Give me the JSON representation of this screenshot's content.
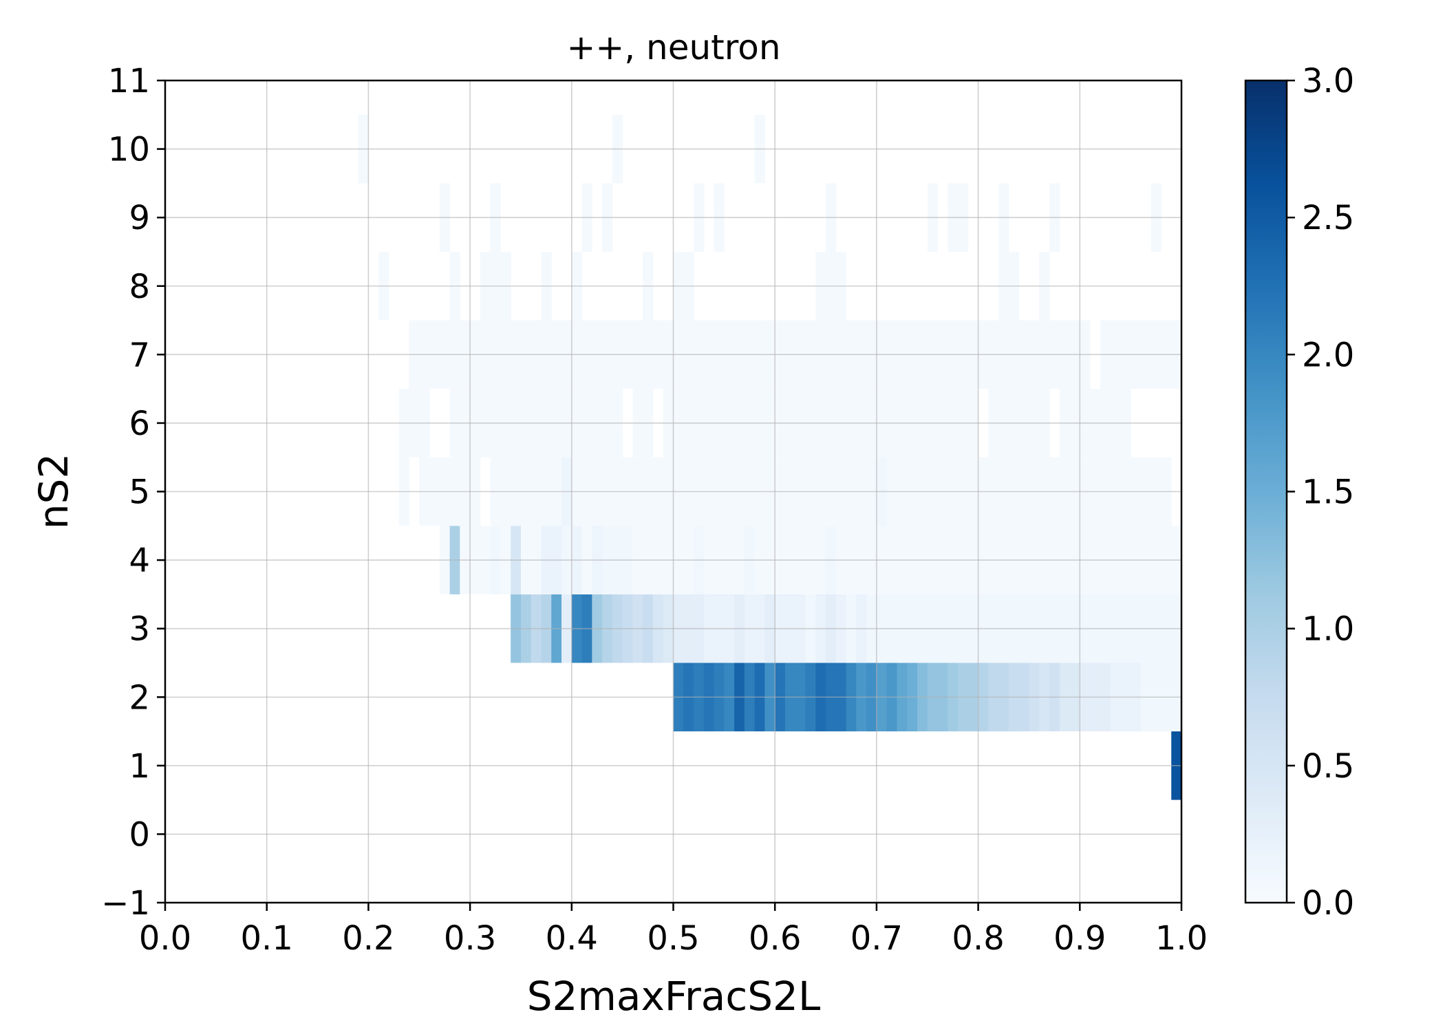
{
  "chart_data": {
    "type": "heatmap",
    "title": "++, neutron",
    "xlabel": "S2maxFracS2L",
    "ylabel": "nS2",
    "xlim": [
      0.0,
      1.0
    ],
    "ylim": [
      -1,
      11
    ],
    "xticks": [
      "0.0",
      "0.1",
      "0.2",
      "0.3",
      "0.4",
      "0.5",
      "0.6",
      "0.7",
      "0.8",
      "0.9",
      "1.0"
    ],
    "yticks": [
      "−1",
      "0",
      "1",
      "2",
      "3",
      "4",
      "5",
      "6",
      "7",
      "8",
      "9",
      "10",
      "11"
    ],
    "grid": true,
    "colormap": "Blues",
    "colorbar": {
      "min": 0.0,
      "max": 3.0,
      "ticks": [
        "0.0",
        "0.5",
        "1.0",
        "1.5",
        "2.0",
        "2.5",
        "3.0"
      ]
    },
    "x_bin_width": 0.01,
    "y_bin_height": 1,
    "rows": [
      {
        "y": 1,
        "x_start": 0.99,
        "values": [
          2.6
        ]
      },
      {
        "y": 2,
        "x_start": 0.5,
        "values": [
          2.1,
          2.2,
          2.1,
          2.2,
          2.1,
          2.0,
          2.4,
          2.1,
          2.3,
          1.9,
          2.2,
          2.0,
          2.0,
          2.1,
          2.3,
          2.2,
          2.2,
          2.0,
          1.8,
          1.9,
          1.7,
          1.8,
          1.6,
          1.5,
          1.3,
          1.2,
          1.2,
          1.1,
          1.0,
          1.0,
          0.9,
          0.8,
          0.8,
          0.7,
          0.7,
          0.6,
          0.5,
          0.6,
          0.4,
          0.4,
          0.3,
          0.3,
          0.3,
          0.2,
          0.2,
          0.2,
          0.1,
          0.1,
          0.1,
          0.1
        ]
      },
      {
        "y": 3,
        "x_start": 0.34,
        "values": [
          1.2,
          1.0,
          0.8,
          0.9,
          1.6,
          0.3,
          2.0,
          2.1,
          1.1,
          0.9,
          0.8,
          0.7,
          0.6,
          0.7,
          0.5,
          0.4,
          0.3,
          0.3,
          0.3,
          0.2,
          0.2,
          0.2,
          0.3,
          0.2,
          0.2,
          0.3,
          0.2,
          0.2,
          0.2,
          0.1,
          0.2,
          0.3,
          0.2,
          0.1,
          0.2,
          0.1,
          0.1,
          0.1,
          0.1,
          0.1,
          0.1,
          0.1,
          0.1,
          0.1,
          0.1,
          0.1,
          0.1,
          0.1,
          0.1,
          0.1,
          0.1,
          0.1,
          0.1,
          0.1,
          0.1,
          0.1,
          0.1,
          0.1,
          0.1,
          0.1,
          0.1,
          0.1,
          0.1,
          0.1,
          0.1,
          0.1
        ]
      },
      {
        "y": 4,
        "x_start": 0.27,
        "values": [
          0.05,
          1.0,
          0.05,
          0.05,
          0.05,
          0.1,
          0.05,
          0.5,
          0.05,
          0.05,
          0.2,
          0.2,
          0.1,
          0.15,
          0.05,
          0.15,
          0.1,
          0.1,
          0.1,
          0.05,
          0.05,
          0.05,
          0.05,
          0.05,
          0.05,
          0.1,
          0.05,
          0.05,
          0.05,
          0.05,
          0.1,
          0.05,
          0.05,
          0.05,
          0.05,
          0.05,
          0.05,
          0.05,
          0.1,
          0.05,
          0.05,
          0.05,
          0.05,
          0.05,
          0.05,
          0.05,
          0.05,
          0.05,
          0.05,
          0.05,
          0.05,
          0.05,
          0.05,
          0.05,
          0.05,
          0.05,
          0.05,
          0.05,
          0.05,
          0.05,
          0.05,
          0.05,
          0.05,
          0.05,
          0.05,
          0.05,
          0.05,
          0.05,
          0.05,
          0.05,
          0.05,
          0.05,
          0.05
        ]
      },
      {
        "y": 5,
        "x_start": 0.23,
        "values": [
          0.05,
          0.0,
          0.05,
          0.05,
          0.05,
          0.05,
          0.05,
          0.05,
          0.0,
          0.05,
          0.05,
          0.05,
          0.05,
          0.05,
          0.05,
          0.05,
          0.15,
          0.05,
          0.05,
          0.05,
          0.05,
          0.05,
          0.05,
          0.05,
          0.05,
          0.05,
          0.05,
          0.05,
          0.05,
          0.05,
          0.05,
          0.05,
          0.05,
          0.05,
          0.05,
          0.05,
          0.05,
          0.05,
          0.05,
          0.05,
          0.05,
          0.05,
          0.05,
          0.05,
          0.05,
          0.05,
          0.05,
          0.1,
          0.05,
          0.05,
          0.05,
          0.05,
          0.05,
          0.05,
          0.05,
          0.05,
          0.05,
          0.05,
          0.05,
          0.05,
          0.05,
          0.05,
          0.05,
          0.05,
          0.05,
          0.05,
          0.05,
          0.05,
          0.05,
          0.05,
          0.05,
          0.05,
          0.05,
          0.05,
          0.05,
          0.05
        ]
      },
      {
        "y": 6,
        "x_start": 0.23,
        "values": [
          0.05,
          0.05,
          0.05,
          0.0,
          0.0,
          0.05,
          0.05,
          0.05,
          0.05,
          0.05,
          0.05,
          0.05,
          0.05,
          0.05,
          0.05,
          0.05,
          0.05,
          0.05,
          0.05,
          0.05,
          0.05,
          0.05,
          0.0,
          0.05,
          0.05,
          0.0,
          0.05,
          0.05,
          0.05,
          0.05,
          0.05,
          0.05,
          0.05,
          0.05,
          0.05,
          0.05,
          0.05,
          0.05,
          0.05,
          0.05,
          0.05,
          0.05,
          0.05,
          0.05,
          0.05,
          0.05,
          0.05,
          0.05,
          0.05,
          0.05,
          0.05,
          0.05,
          0.05,
          0.05,
          0.05,
          0.05,
          0.05,
          0.0,
          0.05,
          0.05,
          0.05,
          0.05,
          0.05,
          0.05,
          0.0,
          0.05,
          0.05,
          0.05,
          0.05,
          0.05,
          0.05,
          0.05,
          0.0
        ]
      },
      {
        "y": 7,
        "x_start": 0.24,
        "values": [
          0.05,
          0.05,
          0.05,
          0.05,
          0.05,
          0.05,
          0.05,
          0.05,
          0.05,
          0.05,
          0.05,
          0.05,
          0.05,
          0.05,
          0.05,
          0.05,
          0.05,
          0.05,
          0.05,
          0.05,
          0.05,
          0.05,
          0.05,
          0.05,
          0.05,
          0.05,
          0.05,
          0.05,
          0.05,
          0.05,
          0.05,
          0.05,
          0.05,
          0.05,
          0.05,
          0.05,
          0.05,
          0.05,
          0.05,
          0.05,
          0.05,
          0.05,
          0.05,
          0.05,
          0.05,
          0.05,
          0.05,
          0.05,
          0.05,
          0.05,
          0.05,
          0.05,
          0.05,
          0.05,
          0.05,
          0.05,
          0.05,
          0.05,
          0.05,
          0.05,
          0.05,
          0.05,
          0.05,
          0.05,
          0.05,
          0.05,
          0.05,
          0.0,
          0.05,
          0.05,
          0.05,
          0.05,
          0.05,
          0.05,
          0.05,
          0.05
        ]
      },
      {
        "y": 8,
        "x_start": 0.21,
        "values": [
          0.05,
          0.0,
          0.0,
          0.0,
          0.0,
          0.0,
          0.0,
          0.05,
          0.0,
          0.0,
          0.05,
          0.05,
          0.05,
          0.0,
          0.0,
          0.0,
          0.05,
          0.0,
          0.0,
          0.05,
          0.0,
          0.0,
          0.0,
          0.0,
          0.0,
          0.0,
          0.05,
          0.0,
          0.0,
          0.05,
          0.05,
          0.0,
          0.0,
          0.0,
          0.0,
          0.0,
          0.0,
          0.0,
          0.0,
          0.0,
          0.0,
          0.0,
          0.0,
          0.05,
          0.05,
          0.05,
          0.0,
          0.0,
          0.0,
          0.0,
          0.0,
          0.0,
          0.0,
          0.0,
          0.0,
          0.0,
          0.0,
          0.0,
          0.0,
          0.0,
          0.0,
          0.05,
          0.05,
          0.0,
          0.0,
          0.05,
          0.0,
          0.0,
          0.0,
          0.0,
          0.0,
          0.0,
          0.0,
          0.0,
          0.0,
          0.0,
          0.0,
          0.0,
          0.0,
          0.0
        ]
      },
      {
        "y": 9,
        "x_start": 0.27,
        "values": [
          0.05,
          0.0,
          0.0,
          0.0,
          0.0,
          0.05,
          0.0,
          0.0,
          0.0,
          0.0,
          0.0,
          0.0,
          0.0,
          0.0,
          0.05,
          0.0,
          0.05,
          0.0,
          0.0,
          0.0,
          0.0,
          0.0,
          0.0,
          0.0,
          0.0,
          0.05,
          0.0,
          0.05,
          0.0,
          0.0,
          0.0,
          0.0,
          0.0,
          0.0,
          0.0,
          0.0,
          0.0,
          0.0,
          0.05,
          0.0,
          0.0,
          0.0,
          0.0,
          0.0,
          0.0,
          0.0,
          0.0,
          0.0,
          0.05,
          0.0,
          0.05,
          0.05,
          0.0,
          0.0,
          0.0,
          0.05,
          0.0,
          0.0,
          0.0,
          0.0,
          0.05,
          0.0,
          0.0,
          0.0,
          0.0,
          0.0,
          0.0,
          0.0,
          0.0,
          0.0,
          0.05
        ]
      },
      {
        "y": 10,
        "x_start": 0.19,
        "values": [
          0.05,
          0.0,
          0.0,
          0.0,
          0.0,
          0.0,
          0.0,
          0.0,
          0.0,
          0.0,
          0.0,
          0.0,
          0.0,
          0.0,
          0.0,
          0.0,
          0.0,
          0.0,
          0.0,
          0.0,
          0.0,
          0.0,
          0.0,
          0.0,
          0.0,
          0.05,
          0.0,
          0.0,
          0.0,
          0.0,
          0.0,
          0.0,
          0.0,
          0.0,
          0.0,
          0.0,
          0.0,
          0.0,
          0.0,
          0.05
        ]
      }
    ]
  }
}
